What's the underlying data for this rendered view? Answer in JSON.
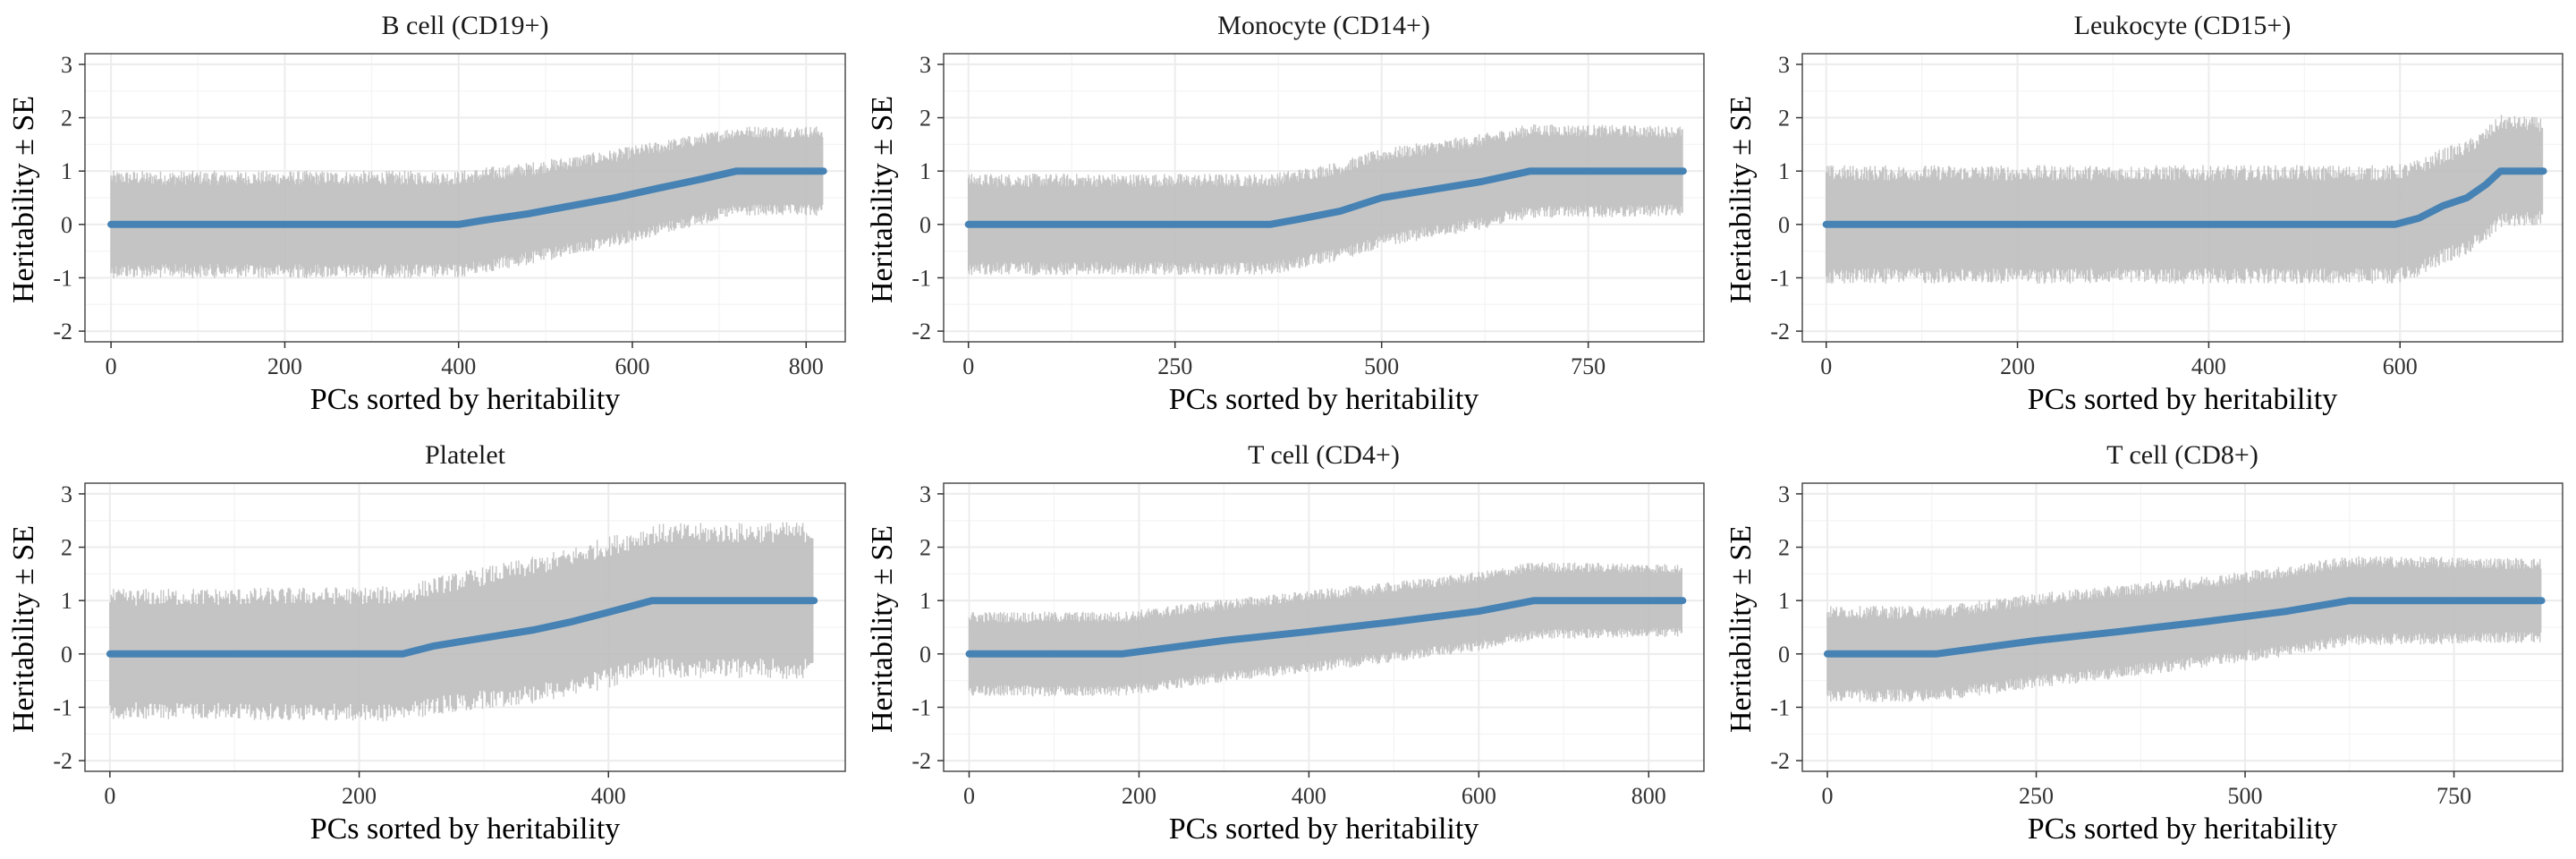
{
  "colors": {
    "line": "#4682b4",
    "band": "#bebebe",
    "grid": "#ececec",
    "border": "#4d4d4d"
  },
  "chart_data": [
    {
      "type": "line",
      "title": "B cell (CD19+)",
      "xlabel": "PCs sorted by heritability",
      "ylabel": "Heritability ± SE",
      "xlim": [
        -30,
        845
      ],
      "ylim": [
        -2.2,
        3.2
      ],
      "xticks": [
        0,
        200,
        400,
        600,
        800
      ],
      "yticks": [
        -2,
        -1,
        0,
        1,
        2,
        3
      ],
      "grid": true,
      "n": 820,
      "x": [
        0,
        400,
        430,
        480,
        530,
        580,
        630,
        680,
        720,
        820
      ],
      "y": [
        0,
        0,
        0.08,
        0.2,
        0.35,
        0.5,
        0.68,
        0.85,
        1.0,
        1.0
      ],
      "se_band": {
        "x": [
          0,
          400,
          600,
          700,
          820
        ],
        "half_width": [
          0.95,
          0.95,
          0.85,
          0.8,
          0.8
        ]
      }
    },
    {
      "type": "line",
      "title": "Monocyte (CD14+)",
      "xlabel": "PCs sorted by heritability",
      "ylabel": "Heritability ± SE",
      "xlim": [
        -30,
        890
      ],
      "ylim": [
        -2.2,
        3.2
      ],
      "xticks": [
        0,
        250,
        500,
        750
      ],
      "yticks": [
        -2,
        -1,
        0,
        1,
        2,
        3
      ],
      "grid": true,
      "n": 865,
      "x": [
        0,
        365,
        400,
        450,
        500,
        560,
        620,
        680,
        865
      ],
      "y": [
        0,
        0,
        0.1,
        0.25,
        0.5,
        0.65,
        0.8,
        1.0,
        1.0
      ],
      "se_band": {
        "x": [
          0,
          365,
          600,
          865
        ],
        "half_width": [
          0.9,
          0.9,
          0.85,
          0.8
        ]
      }
    },
    {
      "type": "line",
      "title": "Leukocyte (CD15+)",
      "xlabel": "PCs sorted by heritability",
      "ylabel": "Heritability ± SE",
      "xlim": [
        -25,
        770
      ],
      "ylim": [
        -2.2,
        3.2
      ],
      "xticks": [
        0,
        200,
        400,
        600
      ],
      "yticks": [
        -2,
        -1,
        0,
        1,
        2,
        3
      ],
      "grid": true,
      "n": 750,
      "x": [
        0,
        595,
        620,
        645,
        670,
        690,
        705,
        750
      ],
      "y": [
        0,
        0,
        0.12,
        0.35,
        0.5,
        0.75,
        1.0,
        1.0
      ],
      "se_band": {
        "x": [
          0,
          595,
          700,
          750
        ],
        "half_width": [
          1.05,
          1.05,
          1.0,
          0.95
        ]
      }
    },
    {
      "type": "line",
      "title": "Platelet",
      "xlabel": "PCs sorted by heritability",
      "ylabel": "Heritability ± SE",
      "xlim": [
        -20,
        590
      ],
      "ylim": [
        -2.2,
        3.2
      ],
      "xticks": [
        0,
        200,
        400
      ],
      "yticks": [
        -2,
        -1,
        0,
        1,
        2,
        3
      ],
      "grid": true,
      "n": 565,
      "x": [
        0,
        235,
        260,
        300,
        340,
        370,
        400,
        435,
        565
      ],
      "y": [
        0,
        0,
        0.15,
        0.3,
        0.45,
        0.6,
        0.78,
        1.0,
        1.0
      ],
      "se_band": {
        "x": [
          0,
          235,
          400,
          565
        ],
        "half_width": [
          1.15,
          1.2,
          1.35,
          1.4
        ]
      }
    },
    {
      "type": "line",
      "title": "T cell (CD4+)",
      "xlabel": "PCs sorted by heritability",
      "ylabel": "Heritability ± SE",
      "xlim": [
        -30,
        865
      ],
      "ylim": [
        -2.2,
        3.2
      ],
      "xticks": [
        0,
        200,
        400,
        600,
        800
      ],
      "yticks": [
        -2,
        -1,
        0,
        1,
        2,
        3
      ],
      "grid": true,
      "n": 840,
      "x": [
        0,
        180,
        300,
        400,
        500,
        600,
        665,
        840
      ],
      "y": [
        0,
        0,
        0.25,
        0.42,
        0.6,
        0.8,
        1.0,
        1.0
      ],
      "se_band": {
        "x": [
          0,
          180,
          600,
          840
        ],
        "half_width": [
          0.75,
          0.75,
          0.7,
          0.65
        ]
      }
    },
    {
      "type": "line",
      "title": "T cell (CD8+)",
      "xlabel": "PCs sorted by heritability",
      "ylabel": "Heritability ± SE",
      "xlim": [
        -30,
        880
      ],
      "ylim": [
        -2.2,
        3.2
      ],
      "xticks": [
        0,
        250,
        500,
        750
      ],
      "yticks": [
        -2,
        -1,
        0,
        1,
        2,
        3
      ],
      "grid": true,
      "n": 855,
      "x": [
        0,
        130,
        250,
        350,
        450,
        550,
        625,
        855
      ],
      "y": [
        0,
        0,
        0.25,
        0.42,
        0.6,
        0.8,
        1.0,
        1.0
      ],
      "se_band": {
        "x": [
          0,
          130,
          600,
          855
        ],
        "half_width": [
          0.85,
          0.85,
          0.8,
          0.75
        ]
      }
    }
  ]
}
